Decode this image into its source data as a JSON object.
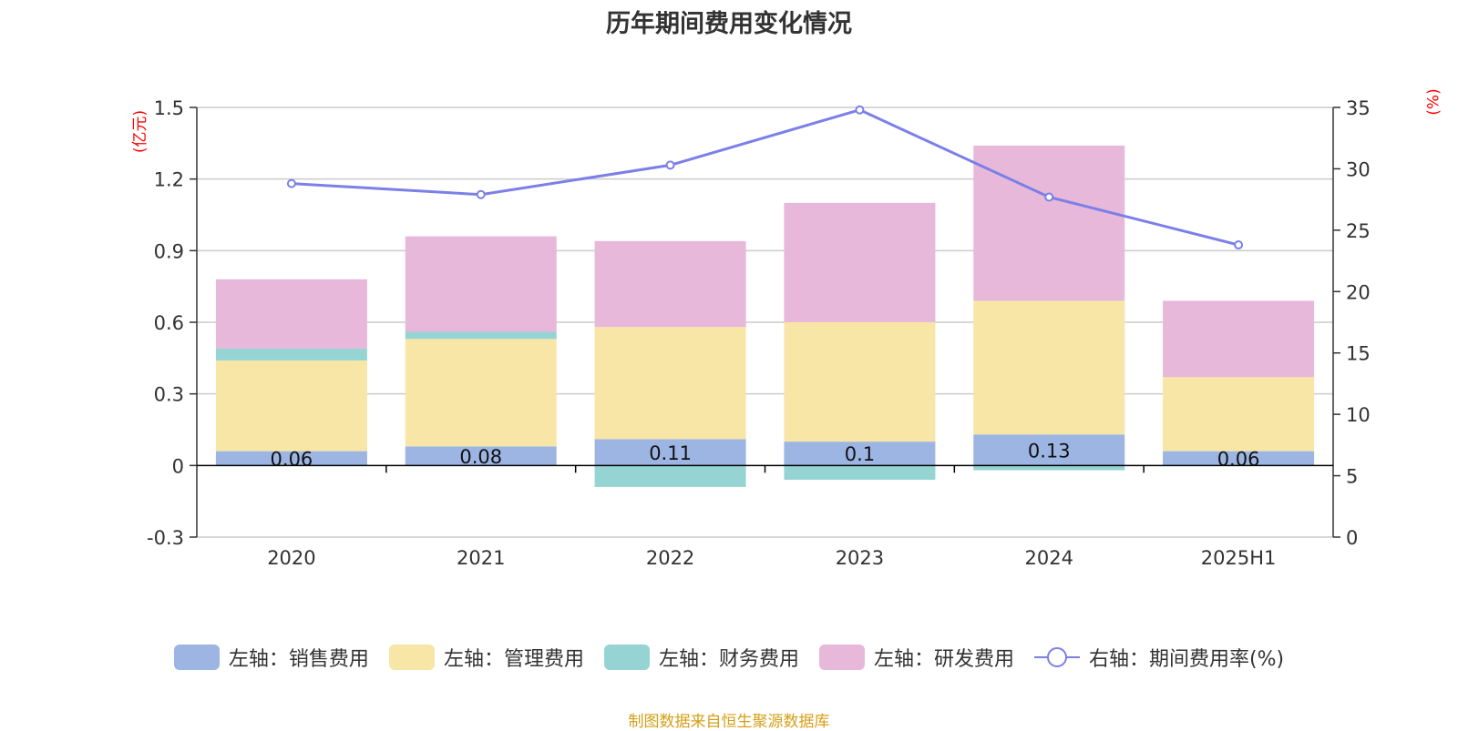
{
  "title": "历年期间费用变化情况",
  "source": "制图数据来自恒生聚源数据库",
  "chart_data": {
    "type": "bar",
    "categories": [
      "2020",
      "2021",
      "2022",
      "2023",
      "2024",
      "2025H1"
    ],
    "y_left": {
      "unit": "(亿元)",
      "ylim": [
        -0.3,
        1.5
      ],
      "ticks": [
        "-0.3",
        "0",
        "0.3",
        "0.6",
        "0.9",
        "1.2",
        "1.5"
      ]
    },
    "y_right": {
      "unit": "(%)",
      "ylim": [
        0,
        35
      ],
      "ticks": [
        "0",
        "5",
        "10",
        "15",
        "20",
        "25",
        "30",
        "35"
      ]
    },
    "grid": true,
    "legend_position": "bottom",
    "series": [
      {
        "name": "左轴：销售费用",
        "type": "bar",
        "axis": "left",
        "color": "#9db5e3",
        "values": [
          0.06,
          0.08,
          0.11,
          0.1,
          0.13,
          0.06
        ],
        "labels": [
          "0.06",
          "0.08",
          "0.11",
          "0.1",
          "0.13",
          "0.06"
        ]
      },
      {
        "name": "左轴：管理费用",
        "type": "bar",
        "axis": "left",
        "color": "#f7e6a6",
        "values": [
          0.38,
          0.45,
          0.47,
          0.5,
          0.56,
          0.31
        ]
      },
      {
        "name": "左轴：财务费用",
        "type": "bar",
        "axis": "left",
        "color": "#96d4d4",
        "values": [
          0.05,
          0.03,
          -0.09,
          -0.06,
          -0.02,
          0.0
        ]
      },
      {
        "name": "左轴：研发费用",
        "type": "bar",
        "axis": "left",
        "color": "#e7b8d9",
        "values": [
          0.29,
          0.4,
          0.36,
          0.5,
          0.65,
          0.32
        ]
      },
      {
        "name": "右轴：期间费用率(%)",
        "type": "line",
        "axis": "right",
        "color": "#7b7fe8",
        "values": [
          28.8,
          27.9,
          30.3,
          34.8,
          27.7,
          23.8
        ]
      }
    ]
  }
}
